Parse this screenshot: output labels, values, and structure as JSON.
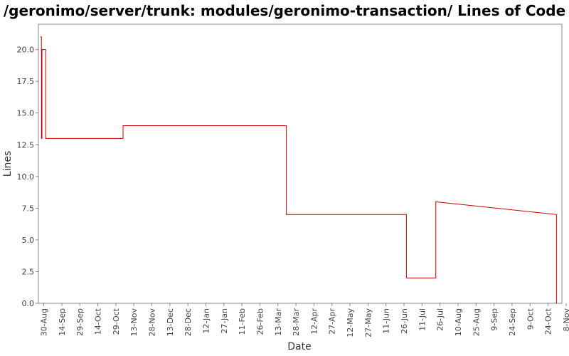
{
  "chart_data": {
    "type": "line",
    "title": "/geronimo/server/trunk: modules/geronimo-transaction/ Lines of Code",
    "xlabel": "Date",
    "ylabel": "Lines",
    "step": true,
    "grid": false,
    "legend": "none",
    "color": "#cc0000",
    "ylim": [
      0,
      22
    ],
    "xlim": [
      -4.5,
      431.5
    ],
    "y_ticks": [
      0.0,
      2.5,
      5.0,
      7.5,
      10.0,
      12.5,
      15.0,
      17.5,
      20.0
    ],
    "y_tick_labels": [
      "0.0",
      "2.5",
      "5.0",
      "7.5",
      "10.0",
      "12.5",
      "15.0",
      "17.5",
      "20.0"
    ],
    "x_ticks": [
      0,
      15,
      30,
      45,
      60,
      75,
      90,
      105,
      120,
      135,
      150,
      165,
      180,
      195,
      210,
      225,
      240,
      255,
      270,
      285,
      300,
      315,
      330,
      345,
      360,
      375,
      390,
      405,
      420,
      435
    ],
    "x_tick_labels": [
      "30-Aug",
      "14-Sep",
      "29-Sep",
      "14-Oct",
      "29-Oct",
      "13-Nov",
      "28-Nov",
      "13-Dec",
      "28-Dec",
      "12-Jan",
      "27-Jan",
      "11-Feb",
      "26-Feb",
      "13-Mar",
      "28-Mar",
      "12-Apr",
      "27-Apr",
      "12-May",
      "27-May",
      "11-Jun",
      "26-Jun",
      "11-Jul",
      "26-Jul",
      "10-Aug",
      "25-Aug",
      "9-Sep",
      "24-Sep",
      "9-Oct",
      "24-Oct",
      "8-Nov"
    ],
    "series": [
      {
        "x": [
          -3,
          -2,
          -2,
          -1.5,
          -1.5,
          1.5,
          1.5,
          66,
          66,
          202,
          202,
          302,
          302,
          326.5,
          326.5,
          427,
          427
        ],
        "values": [
          21,
          21,
          13,
          13,
          20,
          20,
          13,
          13,
          14,
          14,
          7,
          7,
          2,
          2,
          8,
          7,
          0
        ]
      }
    ]
  }
}
